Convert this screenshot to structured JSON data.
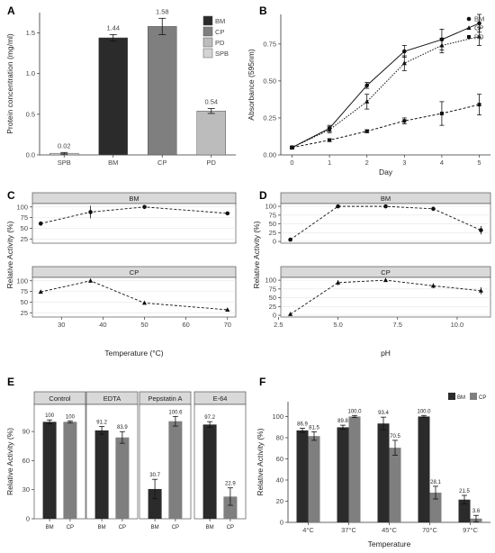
{
  "colors": {
    "BM": "#2b2b2b",
    "CP": "#7f7f7f",
    "PD": "#bcbcbc",
    "SPB": "#d4d4d4",
    "line": "#111111",
    "strip": "#d9d9d9"
  },
  "chart_data": [
    {
      "panel": "A",
      "type": "bar",
      "ylabel": "Protein concentration (mg/ml)",
      "categories": [
        "SPB",
        "BM",
        "CP",
        "PD"
      ],
      "values": [
        0.02,
        1.44,
        1.58,
        0.54
      ],
      "errors": [
        0.01,
        0.04,
        0.1,
        0.03
      ],
      "value_labels": [
        "0.02",
        "1.44",
        "1.58",
        "0.54"
      ],
      "ylim": [
        0,
        1.75
      ],
      "yticks": [
        0.0,
        0.5,
        1.0,
        1.5
      ],
      "ytick_labels": [
        "0.0",
        "0.5",
        "1.0",
        "1.5"
      ],
      "legend": [
        "BM",
        "CP",
        "PD",
        "SPB"
      ],
      "legend_position": "top-right"
    },
    {
      "panel": "B",
      "type": "line",
      "xlabel": "Day",
      "ylabel": "Absorbance (595nm)",
      "x": [
        0,
        1,
        2,
        3,
        4,
        5
      ],
      "xlim": [
        -0.3,
        5.3
      ],
      "ylim": [
        0,
        0.95
      ],
      "xticks": [
        0,
        1,
        2,
        3,
        4,
        5
      ],
      "yticks": [
        0.0,
        0.25,
        0.5,
        0.75
      ],
      "ytick_labels": [
        "0.00",
        "0.25",
        "0.50",
        "0.75"
      ],
      "series": [
        {
          "name": "BM",
          "marker": "circle",
          "dash": "solid",
          "values": [
            0.05,
            0.18,
            0.47,
            0.7,
            0.78,
            0.89
          ],
          "errors": [
            0.01,
            0.02,
            0.02,
            0.04,
            0.07,
            0.06
          ]
        },
        {
          "name": "CP",
          "marker": "triangle",
          "dash": "dotted",
          "values": [
            0.05,
            0.17,
            0.36,
            0.62,
            0.74,
            0.8
          ],
          "errors": [
            0.01,
            0.02,
            0.05,
            0.05,
            0.05,
            0.06
          ]
        },
        {
          "name": "PD",
          "marker": "square",
          "dash": "dashed",
          "values": [
            0.05,
            0.1,
            0.16,
            0.23,
            0.28,
            0.34
          ],
          "errors": [
            0.005,
            0.01,
            0.01,
            0.02,
            0.08,
            0.07
          ]
        }
      ],
      "legend_position": "top-right"
    },
    {
      "panel": "C",
      "type": "line",
      "xlabel": "Temperature (°C)",
      "ylabel": "Relative Activity (%)",
      "xlim": [
        23,
        72
      ],
      "xticks": [
        30,
        40,
        50,
        60,
        70
      ],
      "ylim": [
        15,
        108
      ],
      "yticks": [
        25,
        50,
        75,
        100
      ],
      "facets": [
        {
          "label": "BM",
          "marker": "circle",
          "x": [
            25,
            37,
            50,
            70
          ],
          "values": [
            61,
            88,
            100,
            85
          ],
          "errors": [
            5,
            15,
            2,
            1
          ]
        },
        {
          "label": "CP",
          "marker": "triangle",
          "x": [
            25,
            37,
            50,
            70
          ],
          "values": [
            74,
            100,
            48,
            32
          ],
          "errors": [
            2,
            5,
            2,
            2
          ]
        }
      ]
    },
    {
      "panel": "D",
      "type": "line",
      "xlabel": "pH",
      "ylabel": "Relative Activity (%)",
      "xlim": [
        2.6,
        11.4
      ],
      "xticks": [
        2.5,
        5.0,
        7.5,
        10.0
      ],
      "xtick_labels": [
        "2.5",
        "5.0",
        "7.5",
        "10.0"
      ],
      "ylim": [
        -5,
        108
      ],
      "yticks": [
        0,
        25,
        50,
        75,
        100
      ],
      "facets": [
        {
          "label": "BM",
          "marker": "circle",
          "x": [
            3,
            5,
            7,
            9,
            11
          ],
          "values": [
            5,
            100,
            100,
            93,
            32
          ],
          "errors": [
            1,
            1,
            2,
            6,
            12
          ]
        },
        {
          "label": "CP",
          "marker": "triangle",
          "x": [
            3,
            5,
            7,
            9,
            11
          ],
          "values": [
            3,
            93,
            100,
            84,
            70
          ],
          "errors": [
            1,
            7,
            2,
            7,
            10
          ]
        }
      ]
    },
    {
      "panel": "E",
      "type": "bar",
      "ylabel": "Relative Activity (%)",
      "ylim": [
        0,
        118
      ],
      "yticks": [
        0,
        30,
        60,
        90
      ],
      "categories": [
        "BM",
        "CP"
      ],
      "facets": [
        {
          "label": "Control",
          "values": [
            100,
            100
          ],
          "errors": [
            2,
            1
          ],
          "value_labels": [
            "100",
            "100"
          ]
        },
        {
          "label": "EDTA",
          "values": [
            91.2,
            83.9
          ],
          "errors": [
            4,
            6
          ],
          "value_labels": [
            "91.2",
            "83.9"
          ]
        },
        {
          "label": "Pepstatin A",
          "values": [
            30.7,
            100.6
          ],
          "errors": [
            10,
            5
          ],
          "value_labels": [
            "30.7",
            "100.6"
          ]
        },
        {
          "label": "E-64",
          "values": [
            97.2,
            22.9
          ],
          "errors": [
            3,
            9
          ],
          "value_labels": [
            "97.2",
            "22.9"
          ]
        }
      ]
    },
    {
      "panel": "F",
      "type": "bar",
      "xlabel": "Temperature",
      "ylabel": "Relative Activity (%)",
      "categories": [
        "4°C",
        "37°C",
        "45°C",
        "70°C",
        "97°C"
      ],
      "ylim": [
        0,
        114
      ],
      "yticks": [
        0,
        20,
        40,
        60,
        80,
        100
      ],
      "series": [
        {
          "name": "BM",
          "values": [
            86.9,
            89.8,
            93.4,
            100.0,
            21.5
          ],
          "errors": [
            2,
            2,
            6,
            1,
            4
          ],
          "value_labels": [
            "86.9",
            "89.8",
            "93.4",
            "100.0",
            "21.5"
          ]
        },
        {
          "name": "CP",
          "values": [
            81.5,
            100.0,
            70.5,
            28.1,
            3.6
          ],
          "errors": [
            4,
            1,
            7,
            6,
            3
          ],
          "value_labels": [
            "81.5",
            "100.0",
            "70.5",
            "28.1",
            "3.6"
          ]
        }
      ],
      "legend_position": "top-right"
    }
  ]
}
